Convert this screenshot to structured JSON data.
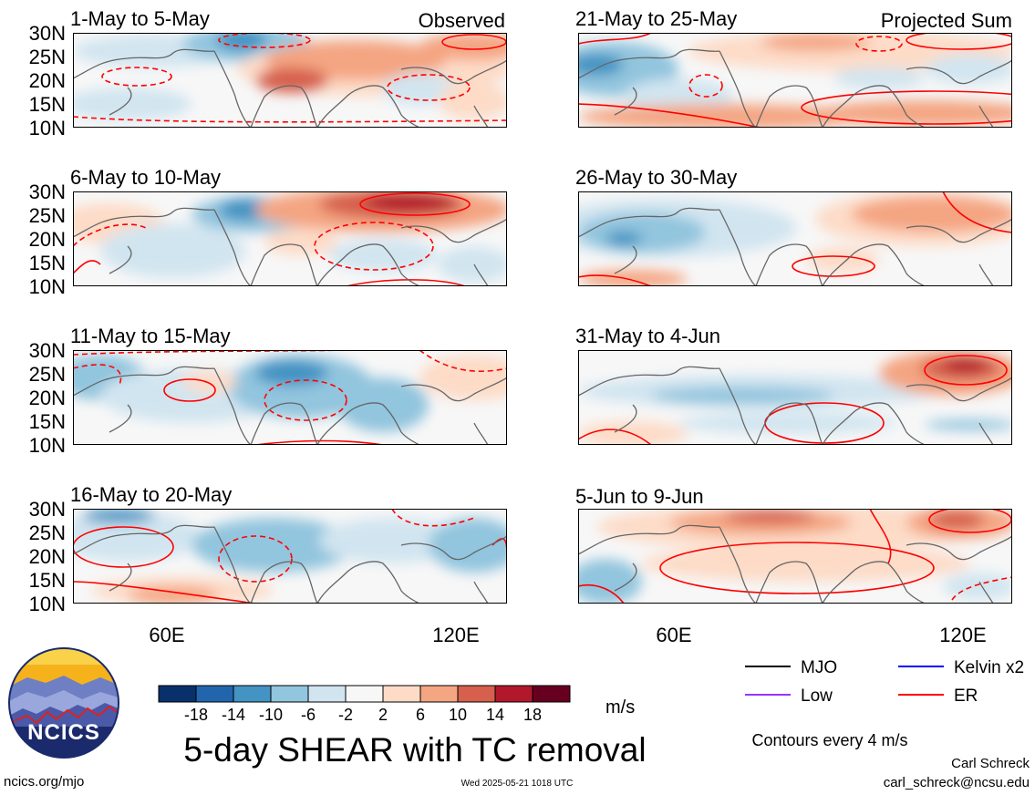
{
  "figure": {
    "title": "5-day SHEAR with TC removal",
    "units": "m/s",
    "contour_note": "Contours every 4 m/s",
    "author": "Carl Schreck",
    "email": "carl_schreck@ncsu.edu",
    "website": "ncics.org/mjo",
    "timestamp": "Wed 2025-05-21 1018 UTC",
    "logo_text": "NCICS"
  },
  "lat_labels": [
    "30N",
    "25N",
    "20N",
    "15N",
    "10N"
  ],
  "lon_labels": [
    "60E",
    "120E"
  ],
  "legend": [
    {
      "label": "MJO",
      "color": "#000000"
    },
    {
      "label": "Kelvin x2",
      "color": "#0000ff"
    },
    {
      "label": "Low",
      "color": "#9933ff"
    },
    {
      "label": "ER",
      "color": "#ff0000"
    }
  ],
  "colorbar": {
    "colors": [
      "#08306b",
      "#2166ac",
      "#4393c3",
      "#92c5de",
      "#d1e5f0",
      "#f7f7f7",
      "#fddbc7",
      "#f4a582",
      "#d6604d",
      "#b2182b",
      "#67001f"
    ],
    "labels": [
      "-18",
      "-14",
      "-10",
      "-6",
      "-2",
      "2",
      "6",
      "10",
      "14",
      "18"
    ]
  },
  "panels": [
    {
      "period": "1-May to 5-May",
      "tag": "Observed"
    },
    {
      "period": "21-May to 25-May",
      "tag": "Projected Sum"
    },
    {
      "period": "6-May to 10-May",
      "tag": ""
    },
    {
      "period": "26-May to 30-May",
      "tag": ""
    },
    {
      "period": "11-May to 15-May",
      "tag": ""
    },
    {
      "period": "31-May to 4-Jun",
      "tag": ""
    },
    {
      "period": "16-May to 20-May",
      "tag": ""
    },
    {
      "period": "5-Jun to 9-Jun",
      "tag": ""
    }
  ]
}
